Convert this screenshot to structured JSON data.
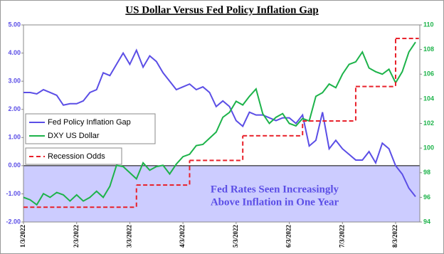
{
  "chart_data": {
    "type": "line",
    "title": "US Dollar Versus Fed Policy Inflation Gap",
    "categories": [
      "1/3/2022",
      null,
      null,
      null,
      null,
      null,
      null,
      null,
      "2/3/2022",
      null,
      null,
      null,
      null,
      null,
      null,
      null,
      "3/3/2022",
      null,
      null,
      null,
      null,
      null,
      null,
      null,
      "4/3/2022",
      null,
      null,
      null,
      null,
      null,
      null,
      null,
      "5/3/2022",
      null,
      null,
      null,
      null,
      null,
      null,
      null,
      "6/3/2022",
      null,
      null,
      null,
      null,
      null,
      null,
      null,
      "7/3/2022",
      null,
      null,
      null,
      null,
      null,
      null,
      null,
      "8/3/2022",
      null,
      null,
      null
    ],
    "series": [
      {
        "name": "Fed Policy Inflation Gap",
        "color": "#5b4ee6",
        "axis": "y",
        "line_style": "solid",
        "values": [
          2.6,
          2.6,
          2.55,
          2.7,
          2.6,
          2.5,
          2.15,
          2.2,
          2.2,
          2.3,
          2.6,
          2.7,
          3.3,
          3.2,
          3.6,
          4.0,
          3.6,
          4.1,
          3.5,
          3.9,
          3.7,
          3.3,
          3.0,
          2.7,
          2.8,
          2.9,
          2.7,
          2.8,
          2.6,
          2.1,
          2.3,
          2.1,
          1.6,
          1.4,
          1.9,
          1.8,
          1.8,
          1.7,
          1.6,
          1.7,
          1.7,
          1.5,
          1.8,
          0.7,
          0.9,
          1.9,
          0.6,
          0.9,
          0.6,
          0.4,
          0.2,
          0.2,
          0.5,
          0.1,
          0.8,
          0.6,
          0.0,
          -0.3,
          -0.8,
          -1.1
        ]
      },
      {
        "name": "DXY US Dollar",
        "color": "#1db34a",
        "axis": "y2",
        "line_style": "solid",
        "values": [
          96.0,
          95.8,
          95.4,
          96.3,
          96.0,
          96.4,
          96.2,
          95.7,
          96.2,
          95.7,
          96.0,
          96.5,
          96.0,
          96.9,
          98.6,
          98.5,
          98.0,
          97.5,
          98.8,
          98.2,
          98.5,
          98.6,
          97.9,
          98.7,
          99.3,
          99.5,
          100.2,
          100.3,
          100.8,
          101.3,
          102.5,
          102.9,
          103.8,
          103.5,
          104.2,
          104.8,
          102.8,
          102.0,
          102.5,
          102.8,
          102.0,
          101.8,
          102.4,
          102.2,
          104.2,
          104.5,
          105.2,
          104.9,
          106.0,
          106.8,
          107.0,
          107.8,
          106.5,
          106.2,
          106.0,
          106.4,
          105.3,
          106.2,
          107.8,
          108.6
        ]
      },
      {
        "name": "Recession Odds",
        "color": "#e8202a",
        "axis": "y2",
        "line_style": "dashed",
        "values": [
          95.2,
          95.2,
          95.2,
          95.2,
          95.2,
          95.2,
          95.2,
          95.2,
          95.2,
          95.2,
          95.2,
          95.2,
          95.2,
          95.2,
          95.2,
          95.2,
          95.2,
          97.0,
          97.0,
          97.0,
          97.0,
          97.0,
          97.0,
          97.0,
          97.0,
          99.0,
          99.0,
          99.0,
          99.0,
          99.0,
          99.0,
          99.0,
          99.0,
          101.0,
          101.0,
          101.0,
          101.0,
          101.0,
          101.0,
          101.0,
          101.0,
          101.0,
          102.2,
          102.2,
          102.2,
          102.2,
          102.2,
          102.2,
          102.2,
          102.2,
          105.0,
          105.0,
          105.0,
          105.0,
          105.0,
          105.0,
          108.9,
          108.9,
          108.9,
          108.9
        ]
      }
    ],
    "ylim": [
      -2,
      5
    ],
    "yticks": [
      {
        "value": -2,
        "label": "-2.00"
      },
      {
        "value": -1,
        "label": "-1.00"
      },
      {
        "value": 0,
        "label": "0.00"
      },
      {
        "value": 1,
        "label": "1.00"
      },
      {
        "value": 2,
        "label": "2.00"
      },
      {
        "value": 3,
        "label": "3.00"
      },
      {
        "value": 4,
        "label": "4.00"
      },
      {
        "value": 5,
        "label": "5.00"
      }
    ],
    "y2lim": [
      94,
      110
    ],
    "y2ticks": [
      94,
      96,
      98,
      100,
      102,
      104,
      106,
      108,
      110
    ],
    "shade_below": 0,
    "shade_color": "#ccccff",
    "annotation": [
      "Fed Rates Seen Increasingly",
      "Above Inflation in One Year"
    ]
  }
}
